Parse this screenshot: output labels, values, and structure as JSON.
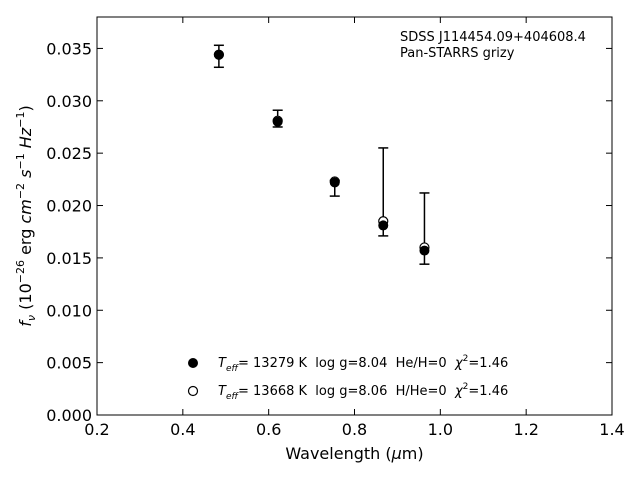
{
  "chart_data": {
    "type": "scatter",
    "xlabel": "Wavelength (μm)",
    "ylabel": "f_ν (10^−26 erg cm^−2 s^−1 Hz^−1)",
    "xlim": [
      0.2,
      1.4
    ],
    "ylim": [
      0.0,
      0.038
    ],
    "xticks": [
      "0.2",
      "0.4",
      "0.6",
      "0.8",
      "1.0",
      "1.2",
      "1.4"
    ],
    "yticks": [
      "0.000",
      "0.005",
      "0.010",
      "0.015",
      "0.020",
      "0.025",
      "0.030",
      "0.035"
    ],
    "grid": false,
    "annotation": [
      "SDSS J114454.09+404608.4",
      "Pan-STARRS grizy"
    ],
    "observed": {
      "x": [
        0.484,
        0.621,
        0.754,
        0.867,
        0.963
      ],
      "y_low": [
        0.0332,
        0.0275,
        0.0209,
        0.0171,
        0.0144
      ],
      "y_high": [
        0.0353,
        0.0291,
        0.0224,
        0.0255,
        0.0212
      ]
    },
    "series": [
      {
        "marker": "filled-circle",
        "x": [
          0.484,
          0.621,
          0.754,
          0.867,
          0.963
        ],
        "y": [
          0.0344,
          0.028,
          0.0222,
          0.0181,
          0.0157
        ]
      },
      {
        "marker": "open-circle",
        "x": [
          0.484,
          0.621,
          0.754,
          0.867,
          0.963
        ],
        "y": [
          0.0344,
          0.0281,
          0.0223,
          0.0185,
          0.016
        ]
      }
    ],
    "legend": [
      {
        "marker": "filled-circle",
        "teff_prefix": "T",
        "teff_sub": "eff",
        "text": "= 13279 K  log g=8.04  He/H=0  ",
        "chi": "χ",
        "chi_sup": "2",
        "chi_val": "=1.46"
      },
      {
        "marker": "open-circle",
        "teff_prefix": "T",
        "teff_sub": "eff",
        "text": "= 13668 K  log g=8.06  H/He=0  ",
        "chi": "χ",
        "chi_sup": "2",
        "chi_val": "=1.46"
      }
    ],
    "legend_position": "lower-center"
  }
}
